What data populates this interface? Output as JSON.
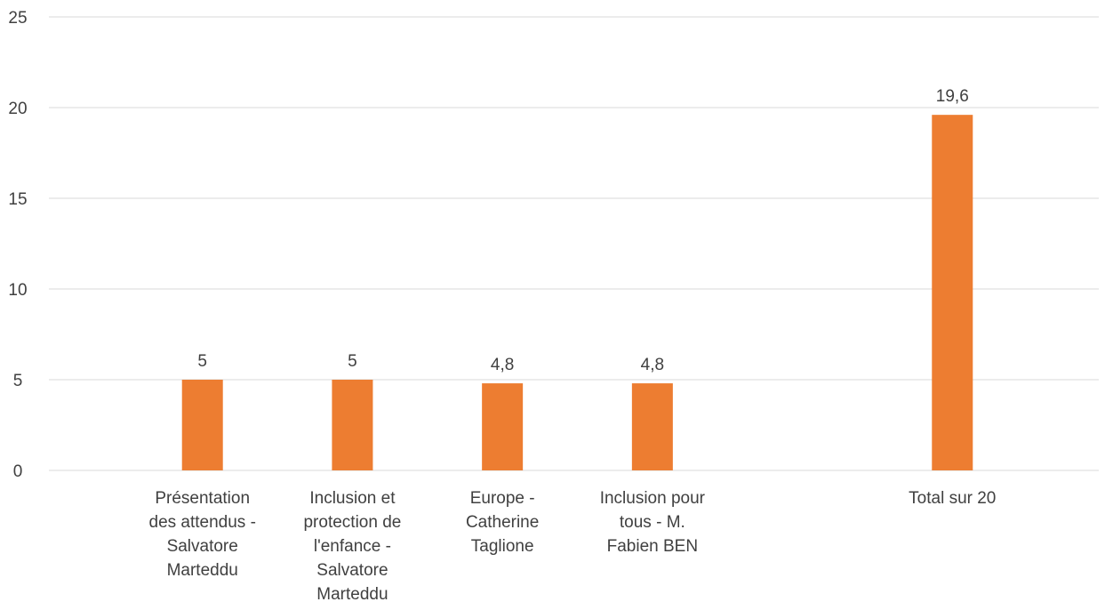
{
  "chart_data": {
    "type": "bar",
    "categories": [
      [
        "Présentation",
        "des attendus -",
        "Salvatore",
        "Marteddu"
      ],
      [
        "Inclusion et",
        "protection de",
        "l'enfance -",
        "Salvatore",
        "Marteddu"
      ],
      [
        "Europe -",
        "Catherine",
        "Taglione"
      ],
      [
        "Inclusion pour",
        "tous - M.",
        "Fabien BEN"
      ],
      [],
      [
        "Total sur 20"
      ]
    ],
    "values": [
      5,
      5,
      4.8,
      4.8,
      null,
      19.6
    ],
    "data_labels": [
      "5",
      "5",
      "4,8",
      "4,8",
      "",
      "19,6"
    ],
    "ylim": [
      0,
      25
    ],
    "y_ticks": [
      "0",
      "5",
      "10",
      "15",
      "20",
      "25"
    ],
    "grid": true,
    "bar_color": "#ED7D31",
    "grid_color": "#D9D9D9"
  }
}
